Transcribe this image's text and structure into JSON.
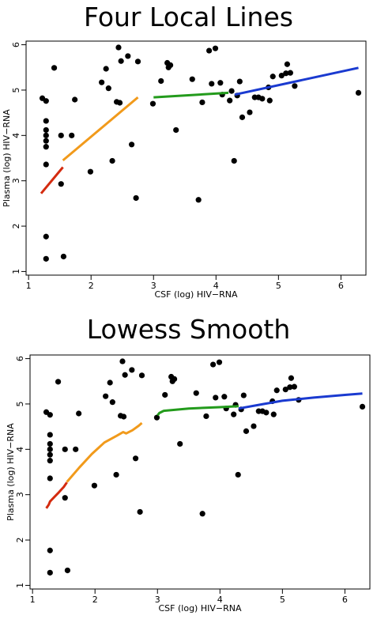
{
  "chart_data": [
    {
      "type": "scatter",
      "title": "Four Local Lines",
      "xlabel": "CSF (log) HIV−RNA",
      "ylabel": "Plasma (log) HIV−RNA",
      "xlim": [
        0.96,
        6.4
      ],
      "ylim": [
        0.92,
        6.08
      ],
      "xticks": [
        "1",
        "2",
        "3",
        "4",
        "5",
        "6"
      ],
      "yticks": [
        "1",
        "2",
        "3",
        "4",
        "5",
        "6"
      ],
      "grid": false,
      "points": [
        [
          1.22,
          4.82
        ],
        [
          1.28,
          4.76
        ],
        [
          1.28,
          4.32
        ],
        [
          1.28,
          4.12
        ],
        [
          1.28,
          4.0
        ],
        [
          1.28,
          3.88
        ],
        [
          1.28,
          3.75
        ],
        [
          1.28,
          3.36
        ],
        [
          1.28,
          1.77
        ],
        [
          1.28,
          1.28
        ],
        [
          1.41,
          5.49
        ],
        [
          1.52,
          4.0
        ],
        [
          1.52,
          2.93
        ],
        [
          1.56,
          1.33
        ],
        [
          1.69,
          4.0
        ],
        [
          1.74,
          4.79
        ],
        [
          1.99,
          3.2
        ],
        [
          2.17,
          5.17
        ],
        [
          2.24,
          5.47
        ],
        [
          2.28,
          5.04
        ],
        [
          2.34,
          3.44
        ],
        [
          2.41,
          4.74
        ],
        [
          2.44,
          5.94
        ],
        [
          2.46,
          4.72
        ],
        [
          2.48,
          5.64
        ],
        [
          2.59,
          5.75
        ],
        [
          2.65,
          3.8
        ],
        [
          2.72,
          2.62
        ],
        [
          2.75,
          5.63
        ],
        [
          2.99,
          4.7
        ],
        [
          3.12,
          5.2
        ],
        [
          3.22,
          5.6
        ],
        [
          3.24,
          5.5
        ],
        [
          3.27,
          5.55
        ],
        [
          3.36,
          4.12
        ],
        [
          3.62,
          5.24
        ],
        [
          3.72,
          2.58
        ],
        [
          3.78,
          4.73
        ],
        [
          3.89,
          5.87
        ],
        [
          3.93,
          5.14
        ],
        [
          3.99,
          5.92
        ],
        [
          4.07,
          5.16
        ],
        [
          4.1,
          4.9
        ],
        [
          4.22,
          4.77
        ],
        [
          4.25,
          4.98
        ],
        [
          4.29,
          3.44
        ],
        [
          4.34,
          4.88
        ],
        [
          4.38,
          5.19
        ],
        [
          4.42,
          4.4
        ],
        [
          4.54,
          4.51
        ],
        [
          4.62,
          4.84
        ],
        [
          4.68,
          4.84
        ],
        [
          4.74,
          4.81
        ],
        [
          4.84,
          5.06
        ],
        [
          4.86,
          4.77
        ],
        [
          4.91,
          5.3
        ],
        [
          5.05,
          5.32
        ],
        [
          5.12,
          5.37
        ],
        [
          5.14,
          5.57
        ],
        [
          5.19,
          5.38
        ],
        [
          5.26,
          5.09
        ],
        [
          6.28,
          4.94
        ]
      ],
      "series": [
        {
          "color": "#d42b0f",
          "x": [
            1.2,
            1.55
          ],
          "y": [
            2.72,
            3.3
          ]
        },
        {
          "color": "#f19a1b",
          "x": [
            1.55,
            2.75
          ],
          "y": [
            3.45,
            4.84
          ]
        },
        {
          "color": "#239b1c",
          "x": [
            3.0,
            4.2
          ],
          "y": [
            4.84,
            4.94
          ]
        },
        {
          "color": "#1a3ad0",
          "x": [
            4.3,
            6.28
          ],
          "y": [
            4.9,
            5.49
          ]
        }
      ]
    },
    {
      "type": "scatter",
      "title": "Lowess Smooth",
      "xlabel": "CSF (log) HIV−RNA",
      "ylabel": "Plasma (log) HIV−RNA",
      "xlim": [
        0.96,
        6.4
      ],
      "ylim": [
        0.92,
        6.08
      ],
      "xticks": [
        "1",
        "2",
        "3",
        "4",
        "5",
        "6"
      ],
      "yticks": [
        "1",
        "2",
        "3",
        "4",
        "5",
        "6"
      ],
      "grid": false,
      "points": [
        [
          1.22,
          4.82
        ],
        [
          1.28,
          4.76
        ],
        [
          1.28,
          4.32
        ],
        [
          1.28,
          4.12
        ],
        [
          1.28,
          4.0
        ],
        [
          1.28,
          3.88
        ],
        [
          1.28,
          3.75
        ],
        [
          1.28,
          3.36
        ],
        [
          1.28,
          1.77
        ],
        [
          1.28,
          1.28
        ],
        [
          1.41,
          5.49
        ],
        [
          1.52,
          4.0
        ],
        [
          1.52,
          2.93
        ],
        [
          1.56,
          1.33
        ],
        [
          1.69,
          4.0
        ],
        [
          1.74,
          4.79
        ],
        [
          1.99,
          3.2
        ],
        [
          2.17,
          5.17
        ],
        [
          2.24,
          5.47
        ],
        [
          2.28,
          5.04
        ],
        [
          2.34,
          3.44
        ],
        [
          2.41,
          4.74
        ],
        [
          2.44,
          5.94
        ],
        [
          2.46,
          4.72
        ],
        [
          2.48,
          5.64
        ],
        [
          2.59,
          5.75
        ],
        [
          2.65,
          3.8
        ],
        [
          2.72,
          2.62
        ],
        [
          2.75,
          5.63
        ],
        [
          2.99,
          4.7
        ],
        [
          3.12,
          5.2
        ],
        [
          3.22,
          5.6
        ],
        [
          3.24,
          5.5
        ],
        [
          3.27,
          5.55
        ],
        [
          3.36,
          4.12
        ],
        [
          3.62,
          5.24
        ],
        [
          3.72,
          2.58
        ],
        [
          3.78,
          4.73
        ],
        [
          3.89,
          5.87
        ],
        [
          3.93,
          5.14
        ],
        [
          3.99,
          5.92
        ],
        [
          4.07,
          5.16
        ],
        [
          4.1,
          4.9
        ],
        [
          4.22,
          4.77
        ],
        [
          4.25,
          4.98
        ],
        [
          4.29,
          3.44
        ],
        [
          4.34,
          4.88
        ],
        [
          4.38,
          5.19
        ],
        [
          4.42,
          4.4
        ],
        [
          4.54,
          4.51
        ],
        [
          4.62,
          4.84
        ],
        [
          4.68,
          4.84
        ],
        [
          4.74,
          4.81
        ],
        [
          4.84,
          5.06
        ],
        [
          4.86,
          4.77
        ],
        [
          4.91,
          5.3
        ],
        [
          5.05,
          5.32
        ],
        [
          5.12,
          5.37
        ],
        [
          5.14,
          5.57
        ],
        [
          5.19,
          5.38
        ],
        [
          5.26,
          5.09
        ],
        [
          6.28,
          4.94
        ]
      ],
      "series": [
        {
          "color": "#d42b0f",
          "x": [
            1.22,
            1.26,
            1.28,
            1.3,
            1.35,
            1.42,
            1.5,
            1.55
          ],
          "y": [
            2.7,
            2.78,
            2.85,
            2.88,
            2.95,
            3.05,
            3.17,
            3.27
          ]
        },
        {
          "color": "#f19a1b",
          "x": [
            1.55,
            1.75,
            1.95,
            2.15,
            2.35,
            2.45,
            2.5,
            2.6,
            2.7,
            2.75
          ],
          "y": [
            3.28,
            3.6,
            3.9,
            4.15,
            4.3,
            4.38,
            4.35,
            4.42,
            4.52,
            4.58
          ]
        },
        {
          "color": "#239b1c",
          "x": [
            3.0,
            3.03,
            3.1,
            3.5,
            4.0,
            4.3
          ],
          "y": [
            4.75,
            4.8,
            4.85,
            4.9,
            4.93,
            4.95
          ]
        },
        {
          "color": "#1a3ad0",
          "x": [
            4.3,
            4.7,
            5.0,
            5.5,
            6.0,
            6.28
          ],
          "y": [
            4.9,
            5.0,
            5.07,
            5.14,
            5.2,
            5.23
          ]
        }
      ]
    }
  ]
}
